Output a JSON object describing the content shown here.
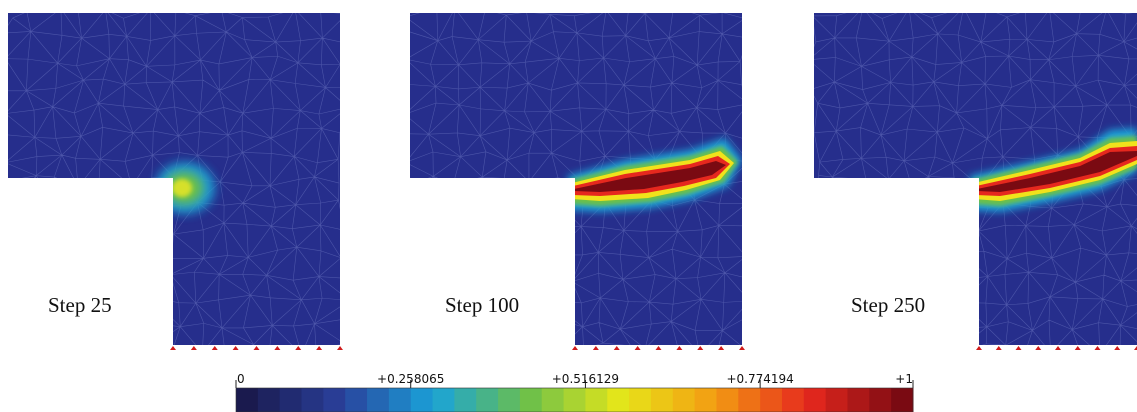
{
  "panels": [
    {
      "label": "Step 25",
      "damage": "onset"
    },
    {
      "label": "Step 100",
      "damage": "band"
    },
    {
      "label": "Step 250",
      "damage": "band-extended"
    }
  ],
  "colorbar": {
    "ticks": [
      "0",
      "+0.258065",
      "+0.516129",
      "+0.774194",
      "+1"
    ],
    "tick_values": [
      0,
      0.258065,
      0.516129,
      0.774194,
      1
    ],
    "range": [
      0,
      1
    ],
    "segments": 31,
    "colors": [
      "#1a1a4e",
      "#2a3f9a",
      "#1aa3d9",
      "#6cc04a",
      "#e6e619",
      "#f39c12",
      "#e6281e",
      "#7a0a12"
    ]
  },
  "mesh": {
    "background": "#262e8c",
    "line": "#5a63b3"
  },
  "boundary_markers": {
    "color": "#d01c1c"
  }
}
